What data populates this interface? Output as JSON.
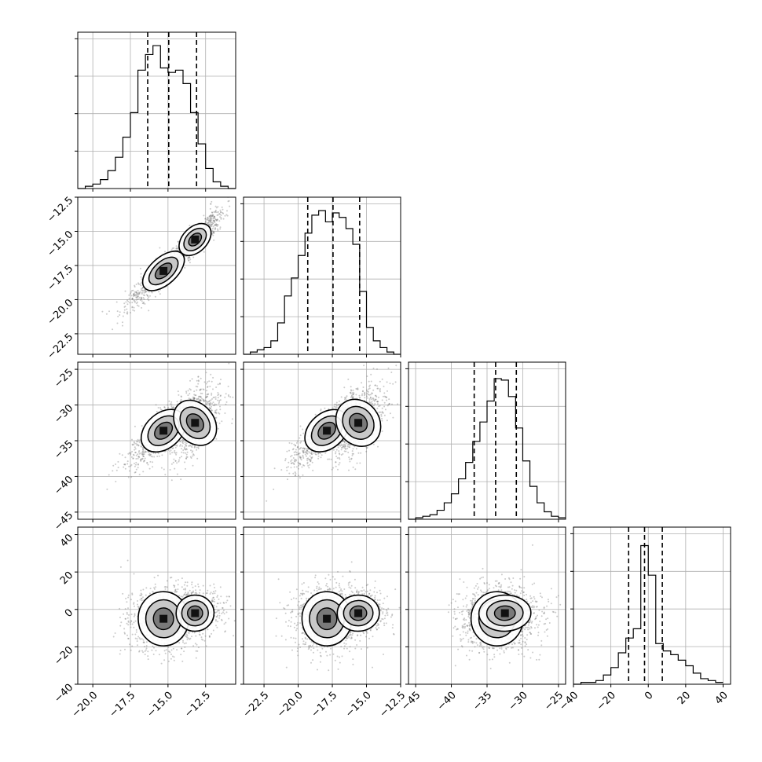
{
  "chart_data": {
    "type": "corner",
    "variables": [
      {
        "ticks": [
          -20.0,
          -17.5,
          -15.0,
          -12.5
        ],
        "tick_labels": [
          "−20.0",
          "−17.5",
          "−15.0",
          "−12.5"
        ]
      },
      {
        "ticks": [
          -22.5,
          -20.0,
          -17.5,
          -15.0,
          -12.5
        ],
        "tick_labels": [
          "−22.5",
          "−20.0",
          "−17.5",
          "−15.0",
          "−12.5"
        ]
      },
      {
        "ticks": [
          -45,
          -40,
          -35,
          -30,
          -25
        ],
        "tick_labels": [
          "−45",
          "−40",
          "−35",
          "−30",
          "−25"
        ]
      },
      {
        "ticks": [
          -40,
          -20,
          0,
          20,
          40
        ],
        "tick_labels": [
          "−40",
          "−20",
          "0",
          "20",
          "40"
        ]
      }
    ],
    "histograms": [
      {
        "edges": [
          -21.0,
          -20.5,
          -20.0,
          -19.5,
          -19.0,
          -18.5,
          -18.0,
          -17.5,
          -17.0,
          -16.5,
          -16.0,
          -15.5,
          -15.0,
          -14.5,
          -14.0,
          -13.5,
          -13.0,
          -12.5,
          -12.0,
          -11.5,
          -11.0,
          -10.5
        ],
        "counts": [
          0,
          1,
          2,
          4,
          8,
          14,
          23,
          34,
          53,
          60,
          64,
          54,
          52,
          53,
          47,
          34,
          20,
          9,
          3,
          1,
          0
        ],
        "quantiles": [
          -16.35,
          -14.95,
          -13.1
        ],
        "ymax": 70
      },
      {
        "edges": [
          -24.0,
          -23.5,
          -23.0,
          -22.5,
          -22.0,
          -21.5,
          -21.0,
          -20.5,
          -20.0,
          -19.5,
          -19.0,
          -18.5,
          -18.0,
          -17.5,
          -17.0,
          -16.5,
          -16.0,
          -15.5,
          -15.0,
          -14.5,
          -14.0,
          -13.5,
          -13.0,
          -12.5
        ],
        "counts": [
          0,
          1,
          2,
          3,
          6,
          14,
          26,
          34,
          44,
          54,
          62,
          64,
          59,
          63,
          61,
          56,
          49,
          28,
          12,
          6,
          3,
          1,
          0
        ],
        "quantiles": [
          -19.3,
          -17.45,
          -15.5
        ],
        "ymax": 70
      },
      {
        "edges": [
          -46,
          -45,
          -44,
          -43,
          -42,
          -41,
          -40,
          -39,
          -38,
          -37,
          -36,
          -35,
          -34,
          -33,
          -32,
          -31,
          -30,
          -29,
          -28,
          -27,
          -26,
          -25,
          -24
        ],
        "counts": [
          0,
          1,
          2,
          3,
          6,
          11,
          17,
          27,
          38,
          52,
          65,
          79,
          94,
          93,
          82,
          61,
          39,
          22,
          11,
          5,
          2,
          1
        ],
        "quantiles": [
          -36.8,
          -33.8,
          -30.9
        ],
        "ymax": 105
      },
      {
        "edges": [
          -40,
          -36,
          -32,
          -28,
          -24,
          -20,
          -16,
          -12,
          -8,
          -4,
          0,
          4,
          8,
          12,
          16,
          20,
          24,
          28,
          32,
          36,
          40
        ],
        "counts": [
          0,
          1,
          1,
          2,
          5,
          9,
          17,
          25,
          30,
          75,
          59,
          22,
          18,
          16,
          13,
          10,
          6,
          3,
          2,
          1
        ],
        "quantiles": [
          -10.5,
          -2.0,
          7.5
        ],
        "ymax": 85
      }
    ]
  }
}
